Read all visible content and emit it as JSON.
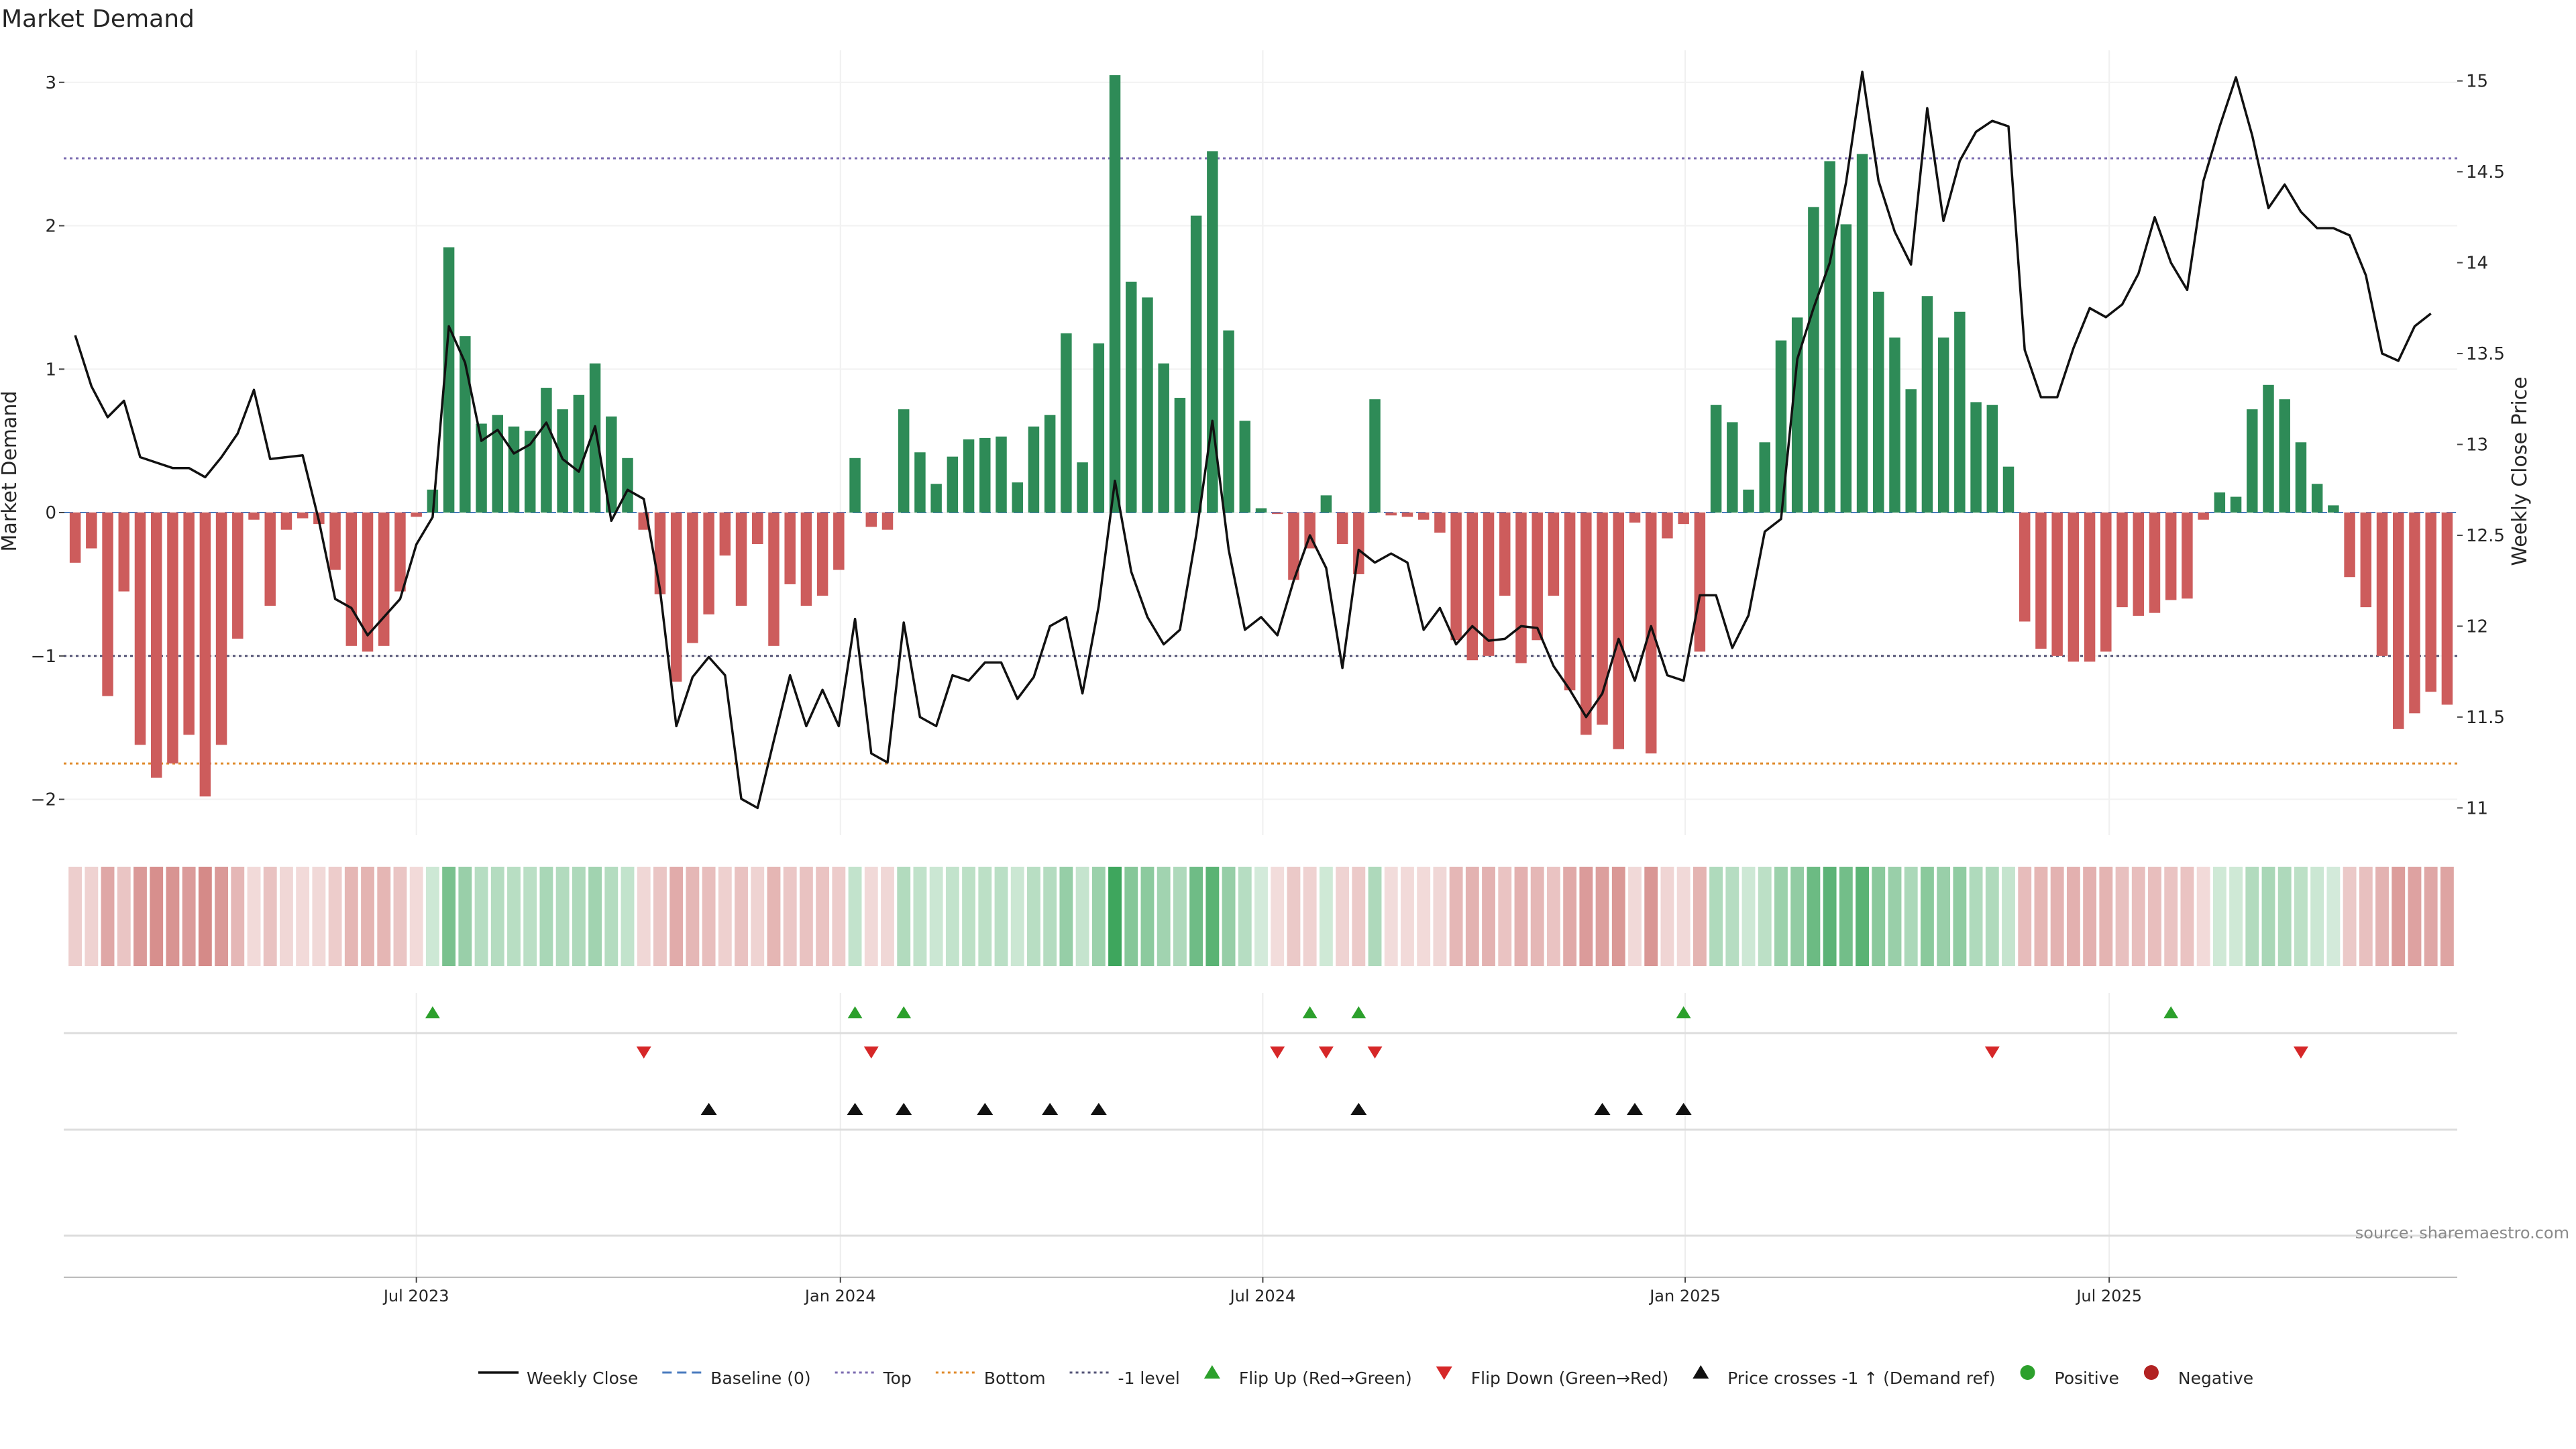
{
  "page": {
    "title": "Market Demand",
    "source": "source: sharemaestro.com"
  },
  "colors": {
    "positive_bar": "#2e8b57",
    "negative_bar": "#cd5c5c",
    "price_line": "#111111",
    "top_line": "#7b6bb0",
    "bottom_line": "#e08a2a",
    "minus1_line": "#555577",
    "baseline": "#4a7bbf",
    "flip_up": "#2ca02c",
    "flip_down": "#d62728",
    "cross": "#111111",
    "heat_pos": "#2e9e4f",
    "heat_neg": "#c0504d",
    "legend_positive": "#2ca02c",
    "legend_negative": "#b22222"
  },
  "chart_data": {
    "type": "bar+line",
    "title": "Market Demand",
    "ylabel_left": "Market Demand",
    "ylabel_right": "Weekly Close Price",
    "ylim_left": [
      -2.25,
      3.2
    ],
    "yticks_left": [
      -2,
      -1,
      0,
      1,
      2,
      3
    ],
    "ylim_right": [
      10.85,
      15.15
    ],
    "yticks_right": [
      11,
      11.5,
      12,
      12.5,
      13,
      13.5,
      14,
      14.5,
      15
    ],
    "xticks": [
      "Jul 2023",
      "Jan 2024",
      "Jul 2024",
      "Jan 2025",
      "Jul 2025"
    ],
    "xtick_index": [
      21.5,
      47.6,
      73.6,
      99.6,
      125.7
    ],
    "reference_lines": {
      "top": 2.47,
      "bottom": -1.75,
      "minus_one": -1.0,
      "baseline": 0
    },
    "demand": [
      -0.35,
      -0.25,
      -1.28,
      -0.55,
      -1.62,
      -1.85,
      -1.75,
      -1.55,
      -1.98,
      -1.62,
      -0.88,
      -0.05,
      -0.65,
      -0.12,
      -0.04,
      -0.08,
      -0.4,
      -0.93,
      -0.97,
      -0.93,
      -0.55,
      -0.03,
      0.16,
      1.85,
      1.23,
      0.62,
      0.68,
      0.6,
      0.57,
      0.87,
      0.72,
      0.82,
      1.04,
      0.67,
      0.38,
      -0.12,
      -0.57,
      -1.18,
      -0.91,
      -0.71,
      -0.3,
      -0.65,
      -0.22,
      -0.93,
      -0.5,
      -0.65,
      -0.58,
      -0.4,
      0.38,
      -0.1,
      -0.12,
      0.72,
      0.42,
      0.2,
      0.39,
      0.51,
      0.52,
      0.53,
      0.21,
      0.6,
      0.68,
      1.25,
      0.35,
      1.18,
      3.05,
      1.61,
      1.5,
      1.04,
      0.8,
      2.07,
      2.52,
      1.27,
      0.64,
      0.03,
      -0.01,
      -0.47,
      -0.25,
      0.12,
      -0.22,
      -0.43,
      0.79,
      -0.02,
      -0.03,
      -0.05,
      -0.14,
      -0.89,
      -1.03,
      -1.0,
      -0.58,
      -1.05,
      -0.89,
      -0.58,
      -1.24,
      -1.55,
      -1.48,
      -1.65,
      -0.07,
      -1.68,
      -0.18,
      -0.08,
      -0.97,
      0.75,
      0.63,
      0.16,
      0.49,
      1.2,
      1.36,
      2.13,
      2.45,
      2.01,
      2.5,
      1.54,
      1.22,
      0.86,
      1.51,
      1.22,
      1.4,
      0.77,
      0.75,
      0.32,
      -0.76,
      -0.95,
      -1.0,
      -1.04,
      -1.04,
      -0.97,
      -0.66,
      -0.72,
      -0.7,
      -0.61,
      -0.6,
      -0.05,
      0.14,
      0.11,
      0.72,
      0.89,
      0.79,
      0.49,
      0.2,
      0.05,
      -0.45,
      -0.66,
      -1.0,
      -1.51,
      -1.4,
      -1.25,
      -1.34
    ],
    "weekly_close": [
      13.6,
      13.32,
      13.15,
      13.24,
      12.93,
      12.9,
      12.87,
      12.87,
      12.82,
      12.93,
      13.06,
      13.3,
      12.92,
      12.93,
      12.94,
      12.58,
      12.15,
      12.1,
      11.95,
      12.05,
      12.15,
      12.45,
      12.6,
      13.65,
      13.45,
      13.02,
      13.08,
      12.95,
      13.0,
      13.12,
      12.92,
      12.85,
      13.1,
      12.58,
      12.75,
      12.7,
      12.2,
      11.45,
      11.72,
      11.83,
      11.73,
      11.05,
      11.0,
      11.37,
      11.73,
      11.45,
      11.65,
      11.45,
      12.04,
      11.3,
      11.25,
      12.02,
      11.5,
      11.45,
      11.73,
      11.7,
      11.8,
      11.8,
      11.6,
      11.72,
      12.0,
      12.05,
      11.63,
      12.11,
      12.8,
      12.3,
      12.05,
      11.9,
      11.98,
      12.5,
      13.13,
      12.42,
      11.98,
      12.05,
      11.95,
      12.25,
      12.5,
      12.32,
      11.77,
      12.42,
      12.35,
      12.4,
      12.35,
      11.98,
      12.1,
      11.9,
      12.0,
      11.92,
      11.93,
      12.0,
      11.99,
      11.78,
      11.65,
      11.5,
      11.63,
      11.93,
      11.7,
      12.0,
      11.73,
      11.7,
      12.17,
      12.17,
      11.88,
      12.06,
      12.52,
      12.59,
      13.47,
      13.75,
      14.0,
      14.44,
      15.05,
      14.45,
      14.17,
      13.99,
      14.85,
      14.23,
      14.56,
      14.72,
      14.78,
      14.75,
      13.52,
      13.26,
      13.26,
      13.53,
      13.75,
      13.7,
      13.77,
      13.94,
      14.25,
      14.0,
      13.85,
      14.45,
      14.75,
      15.02,
      14.7,
      14.3,
      14.43,
      14.28,
      14.19,
      14.19,
      14.15,
      13.93,
      13.5,
      13.46,
      13.65,
      13.72
    ]
  },
  "panels": {
    "flip_up_index": [
      22,
      48,
      51,
      76,
      79,
      99,
      129
    ],
    "flip_down_index": [
      35,
      49,
      74,
      77,
      80,
      118,
      137
    ],
    "cross_index": [
      39,
      48,
      51,
      56,
      60,
      63,
      79,
      94,
      96,
      99
    ]
  },
  "legend": {
    "weekly_close": "Weekly Close",
    "baseline": "Baseline (0)",
    "top": "Top",
    "bottom": "Bottom",
    "minus_one": "-1 level",
    "flip_up": "Flip Up (Red→Green)",
    "flip_down": "Flip Down (Green→Red)",
    "price_cross": "Price crosses -1 ↑ (Demand ref)",
    "positive": "Positive",
    "negative": "Negative"
  }
}
